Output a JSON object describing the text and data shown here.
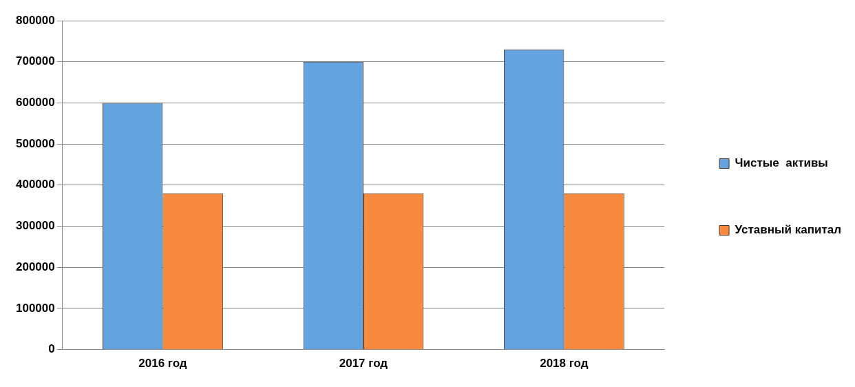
{
  "chart_data": {
    "type": "bar",
    "categories": [
      "2016 год",
      "2017 год",
      "2018 год"
    ],
    "series": [
      {
        "name": "Чистые  активы",
        "color": "#62a3e0",
        "values": [
          600000,
          700000,
          730000
        ]
      },
      {
        "name": "Уставный капитал",
        "color": "#f78a3c",
        "values": [
          380000,
          380000,
          380000
        ]
      }
    ],
    "ylim": [
      0,
      800000
    ],
    "yticks": [
      0,
      100000,
      200000,
      300000,
      400000,
      500000,
      600000,
      700000,
      800000
    ],
    "grid": "y",
    "legend": "right"
  }
}
